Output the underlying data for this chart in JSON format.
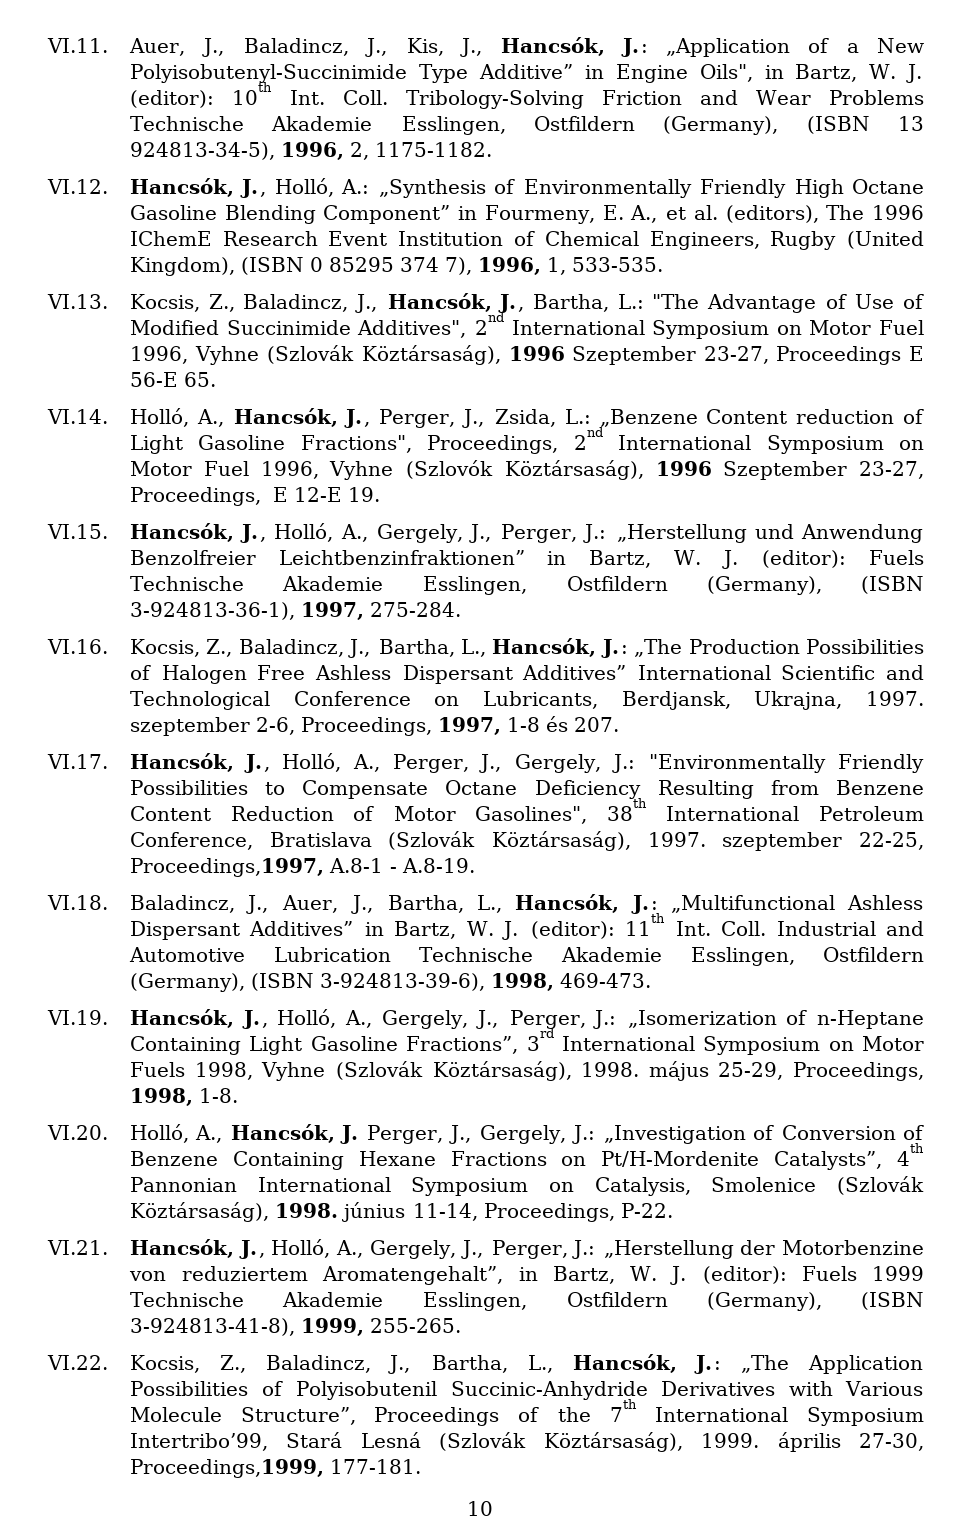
{
  "background_color": "#ffffff",
  "page_number": "10",
  "entries": [
    {
      "label": "VI.11.",
      "italic": false,
      "segments": [
        [
          "normal",
          "Auer, J., Baladincz, J., Kis, J., "
        ],
        [
          "bold",
          "Hancsók, J."
        ],
        [
          "normal",
          ": „Application of a New Polyisobutenyl-Succinimide Type Additive” in Engine Oils\", in Bartz, W. J. (editor): 10"
        ],
        [
          "super",
          "th"
        ],
        [
          "normal",
          " Int. Coll. Tribology-Solving Friction and Wear Problems Technische Akademie Esslingen, Ostfildern (Germany), (ISBN 13 924813-34-5), "
        ],
        [
          "bold",
          "1996,"
        ],
        [
          "normal",
          " 2, 1175-1182."
        ]
      ]
    },
    {
      "label": "VI.12.",
      "italic": false,
      "segments": [
        [
          "bold",
          "Hancsók, J."
        ],
        [
          "normal",
          ", Holló, A.: „Synthesis of Environmentally Friendly High Octane Gasoline Blending Component” in Fourmeny, E. A., et al. (editors), The 1996 IChemE Research Event Institution of Chemical Engineers, Rugby (United Kingdom), (ISBN 0 85295 374 7), "
        ],
        [
          "bold",
          "1996,"
        ],
        [
          "normal",
          " 1, 533-535."
        ]
      ]
    },
    {
      "label": "VI.13.",
      "italic": false,
      "segments": [
        [
          "normal",
          "Kocsis, Z., Baladincz, J., "
        ],
        [
          "bold",
          "Hancsók, J."
        ],
        [
          "normal",
          ", Bartha, L.: \"The Advantage of Use of Modified Succinimide Additives\", 2"
        ],
        [
          "super",
          "nd"
        ],
        [
          "normal",
          " International Symposium on Motor Fuel 1996, Vyhne (Szlovák Köztársaság), "
        ],
        [
          "bold",
          "1996"
        ],
        [
          "normal",
          " Szeptember 23-27, Proceedings E 56-E 65."
        ]
      ]
    },
    {
      "label": "VI.14.",
      "italic": false,
      "segments": [
        [
          "normal",
          "Holló, A., "
        ],
        [
          "bold",
          "Hancsók, J."
        ],
        [
          "normal",
          ", Perger, J., Zsida, L.: „Benzene Content reduction of Light Gasoline Fractions\", Proceedings, 2"
        ],
        [
          "super",
          "nd"
        ],
        [
          "normal",
          " International Symposium on Motor Fuel 1996, Vyhne (Szlovók Köztársaság), "
        ],
        [
          "bold",
          "1996"
        ],
        [
          "normal",
          " Szeptember 23-27, Proceedings,  E 12-E 19."
        ]
      ]
    },
    {
      "label": "VI.15.",
      "italic": false,
      "segments": [
        [
          "bold",
          "Hancsók, J."
        ],
        [
          "normal",
          ", Holló, A., Gergely, J., Perger, J.: „Herstellung und Anwendung Benzolfreier Leichtbenzinfraktionen” in Bartz, W. J. (editor): Fuels Technische Akademie Esslingen, Ostfildern (Germany), (ISBN 3-924813-36-1), "
        ],
        [
          "bold",
          "1997,"
        ],
        [
          "normal",
          " 275-284."
        ]
      ]
    },
    {
      "label": "VI.16.",
      "italic": false,
      "segments": [
        [
          "normal",
          "Kocsis, Z., Baladincz, J., Bartha, L., "
        ],
        [
          "bold",
          "Hancsók, J."
        ],
        [
          "normal",
          ": „The Production Possibilities of Halogen Free Ashless Dispersant Additives” International Scientific and Technological Conference on Lubricants, Berdjansk, Ukrajna, 1997. szeptember 2-6, Proceedings, "
        ],
        [
          "bold",
          "1997,"
        ],
        [
          "normal",
          " 1-8 és 207."
        ]
      ]
    },
    {
      "label": "VI.17.",
      "italic": false,
      "segments": [
        [
          "bold",
          "Hancsók, J."
        ],
        [
          "normal",
          ", Holló, A., Perger, J., Gergely, J.: \"Environmentally Friendly Possibilities to Compensate Octane Deficiency Resulting from Benzene Content Reduction of Motor Gasolines\", 38"
        ],
        [
          "super",
          "th"
        ],
        [
          "normal",
          " International Petroleum Conference, Bratislava (Szlovák Köztársaság), 1997. szeptember 22-25, Proceedings,"
        ],
        [
          "bold",
          "1997,"
        ],
        [
          "normal",
          " A.8-1 - A.8-19."
        ]
      ]
    },
    {
      "label": "VI.18.",
      "italic": true,
      "segments": [
        [
          "normal",
          "Baladincz, J., Auer, J., Bartha, L., "
        ],
        [
          "bold",
          "Hancsók, J."
        ],
        [
          "normal",
          ": „Multifunctional Ashless Dispersant Additives” in Bartz, W. J. (editor): 11"
        ],
        [
          "super",
          "th"
        ],
        [
          "normal",
          " Int. Coll. Industrial and Automotive Lubrication Technische Akademie Esslingen, Ostfildern (Germany), (ISBN 3-924813-39-6), "
        ],
        [
          "bold",
          "1998,"
        ],
        [
          "normal",
          " 469-473."
        ]
      ]
    },
    {
      "label": "VI.19.",
      "italic": true,
      "segments": [
        [
          "bold",
          "Hancsók, J."
        ],
        [
          "normal",
          ", Holló, A., Gergely, J., Perger, J.: „Isomerization of n-Heptane Containing Light Gasoline Fractions”, 3"
        ],
        [
          "super",
          "rd"
        ],
        [
          "normal",
          " International Symposium on Motor Fuels 1998, Vyhne (Szlovák Köztársaság), 1998. május 25-29, Proceedings, "
        ],
        [
          "bold",
          "1998,"
        ],
        [
          "normal",
          " 1-8."
        ]
      ]
    },
    {
      "label": "VI.20.",
      "italic": true,
      "segments": [
        [
          "normal",
          "Holló, A., "
        ],
        [
          "bold",
          "Hancsók, J."
        ],
        [
          "normal",
          " Perger, J., Gergely, J.: „Investigation of Conversion of Benzene Containing Hexane Fractions on Pt/H-Mordenite Catalysts”, 4"
        ],
        [
          "super",
          "th"
        ],
        [
          "normal",
          " Pannonian International Symposium on Catalysis, Smolenice (Szlovák Köztársaság), "
        ],
        [
          "bold",
          "1998."
        ],
        [
          "normal",
          " június 11-14, Proceedings, P-22."
        ]
      ]
    },
    {
      "label": "VI.21.",
      "italic": true,
      "segments": [
        [
          "bold",
          "Hancsók, J."
        ],
        [
          "normal",
          ", Holló, A., Gergely, J., Perger, J.: „Herstellung der Motorbenzine von reduziertem Aromatengehalt”, in Bartz, W. J. (editor): Fuels 1999 Technische Akademie Esslingen, Ostfildern (Germany), (ISBN 3-924813-41-8), "
        ],
        [
          "bold",
          "1999,"
        ],
        [
          "normal",
          " 255-265."
        ]
      ]
    },
    {
      "label": "VI.22.",
      "italic": true,
      "segments": [
        [
          "normal",
          "Kocsis, Z., Baladincz, J., Bartha, L., "
        ],
        [
          "bold",
          "Hancsók, J."
        ],
        [
          "normal",
          ": „The Application Possibilities of Polyisobutenil Succinic-Anhydride Derivatives with Various Molecule Structure”, Proceedings of the 7"
        ],
        [
          "super",
          "th"
        ],
        [
          "normal",
          " International Symposium Intertribo’99, Stará Lesná (Szlovák Köztársaság), 1999. április 27-30, Proceedings,"
        ],
        [
          "bold",
          "1999,"
        ],
        [
          "normal",
          " 177-181."
        ]
      ]
    }
  ]
}
